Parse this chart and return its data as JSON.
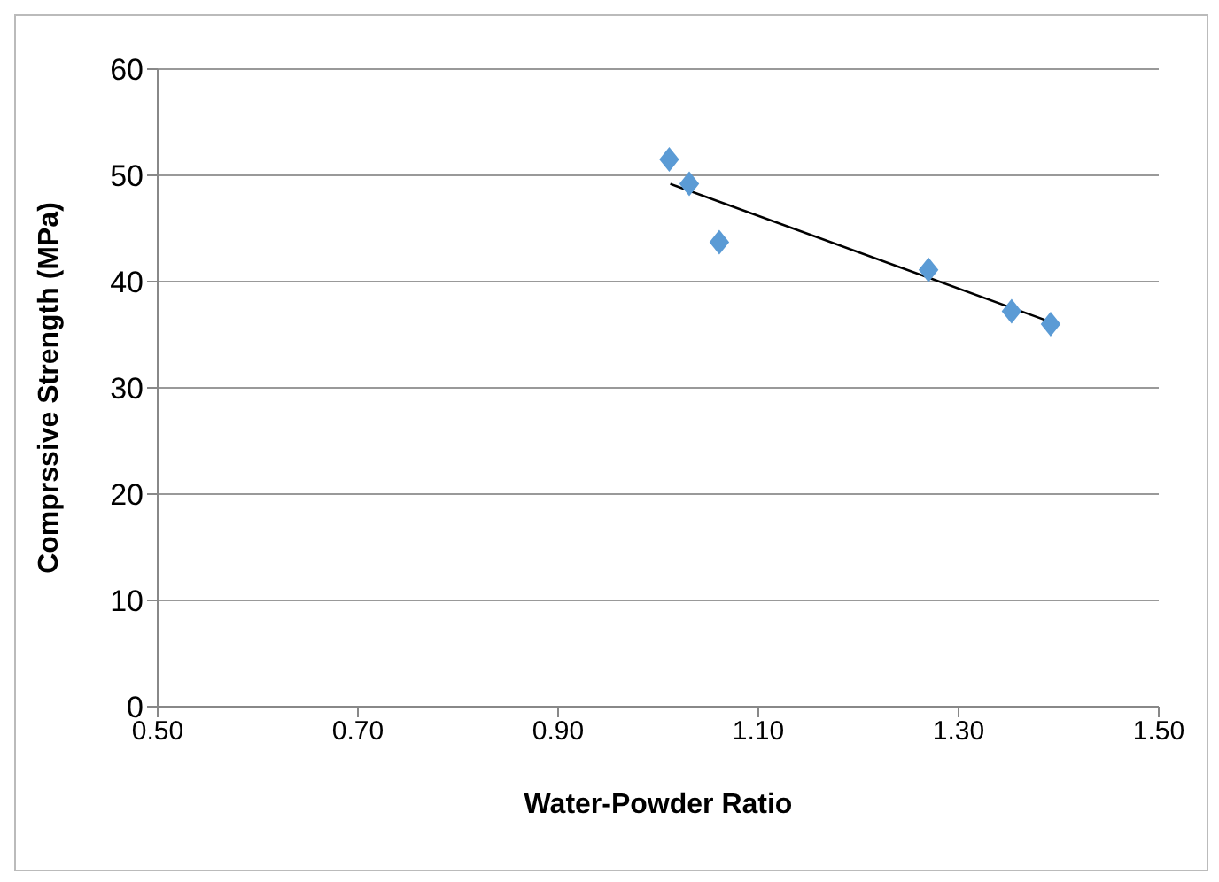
{
  "chart_data": {
    "type": "scatter",
    "xlabel": "Water-Powder Ratio",
    "ylabel": "Comprssive Strength (MPa)",
    "series": [
      {
        "color": "#5b9bd5",
        "x": [
          1.011,
          1.031,
          1.061,
          1.27,
          1.353,
          1.392
        ],
        "values": [
          51.5,
          49.2,
          43.7,
          41.1,
          37.2,
          36.0
        ],
        "marker": "diamond"
      },
      {
        "type": "line",
        "color": "#000000",
        "x": [
          1.012,
          1.392
        ],
        "values": [
          49.2,
          36.2
        ]
      }
    ],
    "xlim": [
      0.5,
      1.5
    ],
    "xticks": [
      {
        "value": 0.5,
        "label": "0.50"
      },
      {
        "value": 0.7,
        "label": "0.70"
      },
      {
        "value": 0.9,
        "label": "0.90"
      },
      {
        "value": 1.1,
        "label": "1.10"
      },
      {
        "value": 1.3,
        "label": "1.30"
      },
      {
        "value": 1.5,
        "label": "1.50"
      }
    ],
    "ylim": [
      0,
      60
    ],
    "yticks": [
      0,
      10,
      20,
      30,
      40,
      50,
      60
    ],
    "grid": "y"
  }
}
